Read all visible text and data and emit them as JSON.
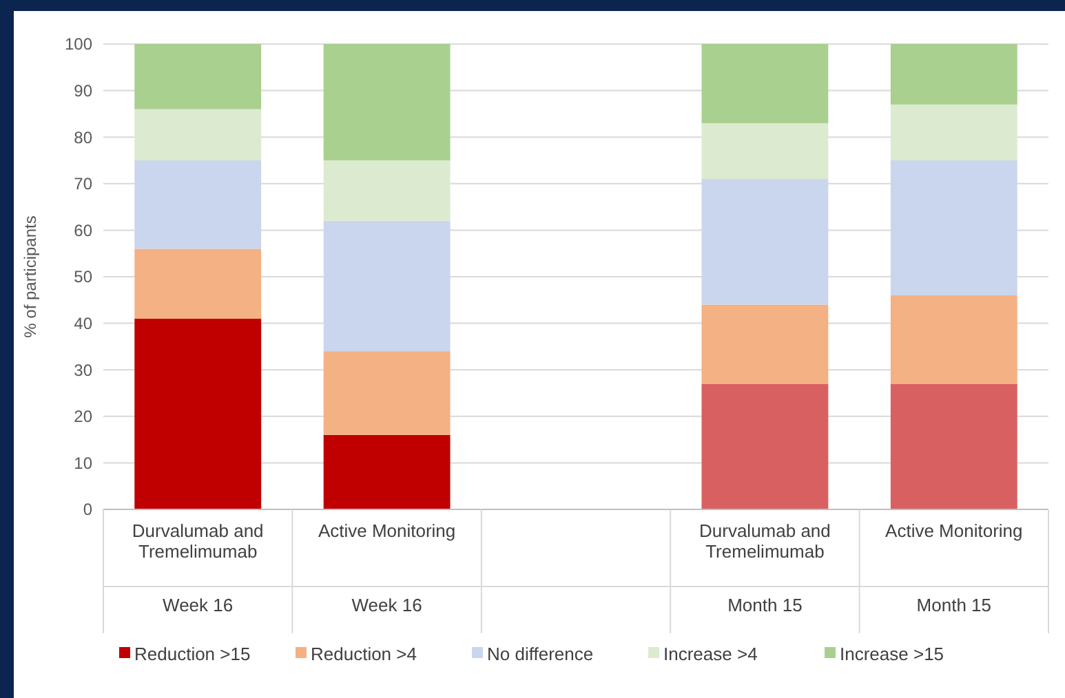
{
  "chart_data": {
    "type": "bar",
    "stacked": true,
    "ylabel": "% of participants",
    "categories": [
      "Durvalumab and Tremelimumab\nWeek 16",
      "Active Monitoring\nWeek 16",
      null,
      "Durvalumab and Tremelimumab\nMonth 15",
      "Active Monitoring\nMonth 15"
    ],
    "series": [
      {
        "name": "Reduction >15",
        "color": "#c00000",
        "colors": [
          "#c00000",
          "#c00000",
          null,
          "#d96060",
          "#d96060"
        ],
        "values": [
          41,
          16,
          null,
          27,
          27
        ]
      },
      {
        "name": "Reduction >4",
        "color": "#f4b183",
        "values": [
          15,
          18,
          null,
          17,
          19
        ]
      },
      {
        "name": "No difference",
        "color": "#c9d6ee",
        "values": [
          19,
          28,
          null,
          27,
          29
        ]
      },
      {
        "name": "Increase >4",
        "color": "#dcebd0",
        "values": [
          11,
          13,
          null,
          12,
          12
        ]
      },
      {
        "name": "Increase >15",
        "color": "#a9d08e",
        "values": [
          14,
          25,
          null,
          17,
          13
        ]
      }
    ],
    "ylim": [
      0,
      100
    ],
    "yticks": [
      0,
      10,
      20,
      30,
      40,
      50,
      60,
      70,
      80,
      90,
      100
    ],
    "grid": "y",
    "legend": "bottom"
  }
}
